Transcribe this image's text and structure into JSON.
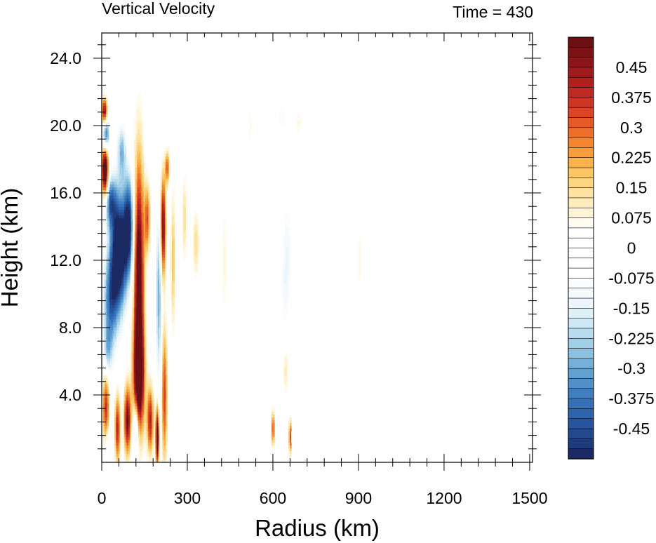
{
  "chart_data": {
    "type": "heatmap",
    "title": "Vertical Velocity",
    "subtitle": "Time = 430",
    "xlabel": "Radius (km)",
    "ylabel": "Height (km)",
    "xlim": [
      0,
      1510
    ],
    "ylim": [
      0,
      25.5
    ],
    "x_ticks": [
      0,
      300,
      600,
      900,
      1200,
      1500
    ],
    "x_tick_labels": [
      "0",
      "300",
      "600",
      "900",
      "1200",
      "1500"
    ],
    "y_ticks": [
      4,
      8,
      12,
      16,
      20,
      24
    ],
    "y_tick_labels": [
      "4.0",
      "8.0",
      "12.0",
      "16.0",
      "20.0",
      "24.0"
    ],
    "grid": false,
    "colorbar": {
      "placement": "right",
      "levels": [
        -0.525,
        -0.5,
        -0.475,
        -0.45,
        -0.425,
        -0.4,
        -0.375,
        -0.35,
        -0.325,
        -0.3,
        -0.275,
        -0.25,
        -0.225,
        -0.2,
        -0.175,
        -0.15,
        -0.125,
        -0.1,
        -0.075,
        -0.05,
        -0.025,
        0,
        0.025,
        0.05,
        0.075,
        0.1,
        0.125,
        0.15,
        0.175,
        0.2,
        0.225,
        0.25,
        0.275,
        0.3,
        0.325,
        0.35,
        0.375,
        0.4,
        0.425,
        0.45,
        0.475,
        0.5,
        0.525
      ],
      "tick_labels": [
        "0.45",
        "0.375",
        "0.3",
        "0.225",
        "0.15",
        "0.075",
        "0",
        "-0.075",
        "-0.15",
        "-0.225",
        "-0.3",
        "-0.375",
        "-0.45"
      ],
      "tick_values": [
        0.45,
        0.375,
        0.3,
        0.225,
        0.15,
        0.075,
        0,
        -0.075,
        -0.15,
        -0.225,
        -0.3,
        -0.375,
        -0.45
      ]
    },
    "features": [
      {
        "r": 130,
        "z": 11,
        "sr": 18,
        "sz": 7,
        "v": 0.6
      },
      {
        "r": 130,
        "z": 5,
        "sr": 20,
        "sz": 3,
        "v": 0.5
      },
      {
        "r": 160,
        "z": 14.5,
        "sr": 10,
        "sz": 2,
        "v": 0.3
      },
      {
        "r": 170,
        "z": 2.5,
        "sr": 12,
        "sz": 2,
        "v": 0.4
      },
      {
        "r": 120,
        "z": 2,
        "sr": 10,
        "sz": 1.8,
        "v": -0.3
      },
      {
        "r": 215,
        "z": 14,
        "sr": 10,
        "sz": 3,
        "v": 0.5
      },
      {
        "r": 220,
        "z": 4,
        "sr": 10,
        "sz": 4,
        "v": 0.35
      },
      {
        "r": 200,
        "z": 10,
        "sr": 10,
        "sz": 5,
        "v": -0.3
      },
      {
        "r": 195,
        "z": 1.5,
        "sr": 6,
        "sz": 1.8,
        "v": 0.6
      },
      {
        "r": 90,
        "z": 2.5,
        "sr": 12,
        "sz": 2,
        "v": 0.5
      },
      {
        "r": 55,
        "z": 2,
        "sr": 10,
        "sz": 2,
        "v": 0.4
      },
      {
        "r": 15,
        "z": 3,
        "sr": 12,
        "sz": 2.5,
        "v": 0.4
      },
      {
        "r": 20,
        "z": 1,
        "sr": 15,
        "sz": 1.5,
        "v": -0.2
      },
      {
        "r": 60,
        "z": 12.5,
        "sr": 28,
        "sz": 3.5,
        "v": -0.65
      },
      {
        "r": 95,
        "z": 14,
        "sr": 18,
        "sz": 3,
        "v": -0.5
      },
      {
        "r": 30,
        "z": 9.5,
        "sr": 25,
        "sz": 3,
        "v": -0.35
      },
      {
        "r": 20,
        "z": 6.5,
        "sr": 15,
        "sz": 1.5,
        "v": -0.2
      },
      {
        "r": 12,
        "z": 17.3,
        "sr": 12,
        "sz": 1.6,
        "v": 0.65
      },
      {
        "r": 15,
        "z": 19.5,
        "sr": 12,
        "sz": 1,
        "v": -0.45
      },
      {
        "r": 10,
        "z": 20.8,
        "sr": 10,
        "sz": 0.8,
        "v": 0.5
      },
      {
        "r": 30,
        "z": 15.5,
        "sr": 20,
        "sz": 1.5,
        "v": -0.35
      },
      {
        "r": 70,
        "z": 18.5,
        "sr": 15,
        "sz": 1.5,
        "v": -0.25
      },
      {
        "r": 230,
        "z": 17.5,
        "sr": 8,
        "sz": 1,
        "v": 0.3
      },
      {
        "r": 250,
        "z": 12,
        "sr": 8,
        "sz": 4,
        "v": 0.2
      },
      {
        "r": 290,
        "z": 14.5,
        "sr": 8,
        "sz": 2.5,
        "v": 0.15
      },
      {
        "r": 330,
        "z": 13,
        "sr": 12,
        "sz": 2,
        "v": 0.15
      },
      {
        "r": 370,
        "z": 7,
        "sr": 20,
        "sz": 3,
        "v": -0.06
      },
      {
        "r": 430,
        "z": 12,
        "sr": 10,
        "sz": 4,
        "v": 0.08
      },
      {
        "r": 650,
        "z": 12.5,
        "sr": 20,
        "sz": 3.5,
        "v": -0.12
      },
      {
        "r": 640,
        "z": 9.5,
        "sr": 15,
        "sz": 2.5,
        "v": -0.06
      },
      {
        "r": 630,
        "z": 20.5,
        "sr": 20,
        "sz": 1,
        "v": -0.1
      },
      {
        "r": 520,
        "z": 20,
        "sr": 10,
        "sz": 1.5,
        "v": 0.06
      },
      {
        "r": 690,
        "z": 20.2,
        "sr": 10,
        "sz": 0.8,
        "v": 0.08
      },
      {
        "r": 905,
        "z": 12,
        "sr": 15,
        "sz": 3,
        "v": 0.06
      },
      {
        "r": 600,
        "z": 2,
        "sr": 3,
        "sz": 1,
        "v": 0.55
      },
      {
        "r": 660,
        "z": 1.5,
        "sr": 4,
        "sz": 1,
        "v": 0.4
      },
      {
        "r": 645,
        "z": 5.5,
        "sr": 10,
        "sz": 1.5,
        "v": 0.12
      },
      {
        "r": 350,
        "z": 2,
        "sr": 10,
        "sz": 1.5,
        "v": -0.05
      },
      {
        "r": 470,
        "z": 4,
        "sr": 15,
        "sz": 1.5,
        "v": -0.05
      },
      {
        "r": 330,
        "z": 18,
        "sr": 8,
        "sz": 1,
        "v": -0.05
      },
      {
        "r": 850,
        "z": 1,
        "sr": 20,
        "sz": 1,
        "v": -0.04
      },
      {
        "r": 1150,
        "z": 1.2,
        "sr": 15,
        "sz": 0.8,
        "v": 0.04
      }
    ]
  }
}
